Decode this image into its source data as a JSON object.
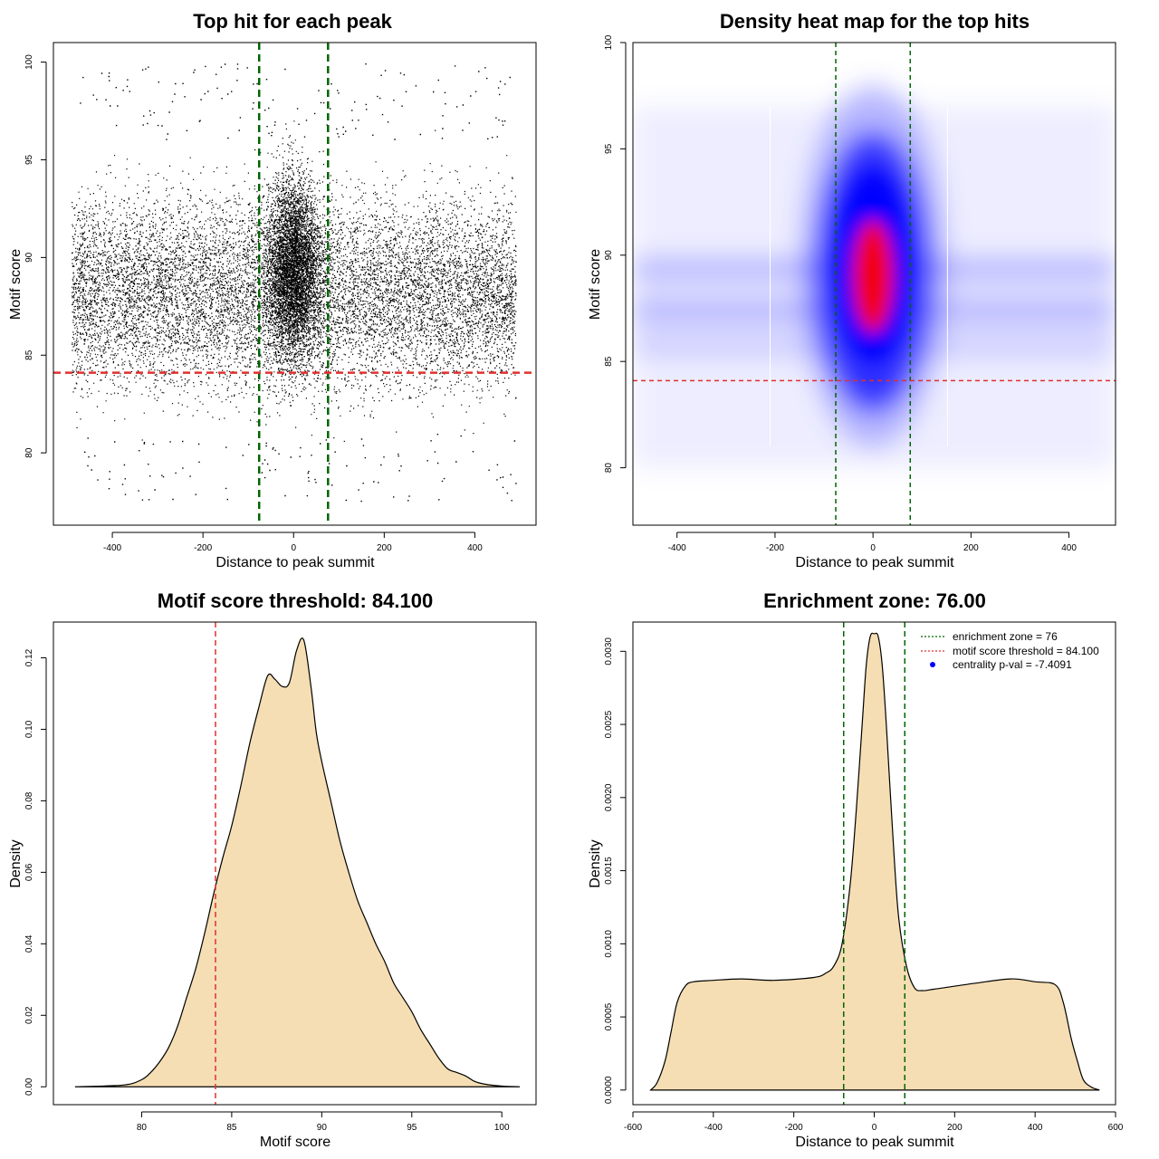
{
  "chart_data": [
    {
      "id": "scatter",
      "type": "scatter",
      "title": "Top hit for each peak",
      "xlabel": "Distance to peak summit",
      "ylabel": "Motif score",
      "xlim": [
        -530,
        535
      ],
      "ylim": [
        76.3,
        101
      ],
      "xticks": [
        -400,
        -200,
        0,
        200,
        400
      ],
      "yticks": [
        80,
        85,
        90,
        95,
        100
      ],
      "x_range": [
        -490,
        490
      ],
      "y_range": [
        77.5,
        100
      ],
      "point_density_note": "dense cloud of top-hit points; highest concentration between x -76 and 76 and scores 84-95",
      "vlines": [
        {
          "x": -76,
          "color": "#006400"
        },
        {
          "x": 76,
          "color": "#006400"
        }
      ],
      "hlines": [
        {
          "y": 84.1,
          "color": "#e0302f"
        }
      ]
    },
    {
      "id": "heatmap",
      "type": "heatmap",
      "title": "Density heat map for the top hits",
      "xlabel": "Distance to peak summit",
      "ylabel": "Motif score",
      "xlim": [
        -490,
        495
      ],
      "ylim": [
        77.3,
        100
      ],
      "xticks": [
        -400,
        -200,
        0,
        200,
        400
      ],
      "yticks": [
        80,
        85,
        90,
        95,
        100
      ],
      "colors": {
        "low": "#ffffff",
        "mid": "#0000ff",
        "high": "#ff0000"
      },
      "hotspot": {
        "x": 0,
        "y": 89
      },
      "vlines": [
        {
          "x": -76,
          "color": "#006400"
        },
        {
          "x": 76,
          "color": "#006400"
        }
      ],
      "hlines": [
        {
          "y": 84.1,
          "color": "#e0302f"
        }
      ]
    },
    {
      "id": "score_density",
      "type": "area",
      "title": "Motif score threshold: 84.100",
      "xlabel": "Motif score",
      "ylabel": "Density",
      "xlim": [
        75.1,
        101.9
      ],
      "ylim": [
        -0.005,
        0.13
      ],
      "xticks": [
        80,
        85,
        90,
        95,
        100
      ],
      "yticks": [
        0.0,
        0.02,
        0.04,
        0.06,
        0.08,
        0.1,
        0.12
      ],
      "ytick_labels": [
        "0.00",
        "0.02",
        "0.04",
        "0.06",
        "0.08",
        "0.10",
        "0.12"
      ],
      "fill": "#f5deb3",
      "x": [
        76.3,
        79,
        80,
        80.5,
        81,
        81.5,
        82,
        82.5,
        83,
        83.5,
        84,
        84.5,
        85,
        85.5,
        86,
        86.5,
        87,
        87.4,
        87.8,
        88.2,
        88.6,
        89,
        89.4,
        89.7,
        90,
        90.5,
        91,
        91.5,
        92,
        92.5,
        93,
        93.5,
        94,
        94.5,
        95,
        95.5,
        96,
        96.5,
        97,
        97.5,
        98,
        98.5,
        99,
        100,
        101
      ],
      "y": [
        0,
        0.0005,
        0.002,
        0.004,
        0.007,
        0.011,
        0.017,
        0.025,
        0.033,
        0.043,
        0.054,
        0.064,
        0.073,
        0.084,
        0.096,
        0.106,
        0.115,
        0.114,
        0.112,
        0.113,
        0.122,
        0.125,
        0.112,
        0.099,
        0.091,
        0.08,
        0.069,
        0.06,
        0.052,
        0.046,
        0.04,
        0.035,
        0.029,
        0.025,
        0.021,
        0.016,
        0.012,
        0.008,
        0.005,
        0.004,
        0.003,
        0.0015,
        0.0008,
        0.0002,
        0
      ],
      "vlines": [
        {
          "x": 84.1,
          "color": "#e0302f"
        }
      ]
    },
    {
      "id": "distance_density",
      "type": "area",
      "title": "Enrichment zone: 76.00",
      "xlabel": "Distance to peak summit",
      "ylabel": "Density",
      "xlim": [
        -600,
        600
      ],
      "ylim": [
        -0.0001,
        0.0032
      ],
      "xticks": [
        -600,
        -400,
        -200,
        0,
        200,
        400,
        600
      ],
      "yticks": [
        0,
        0.0005,
        0.001,
        0.0015,
        0.002,
        0.0025,
        0.003
      ],
      "ytick_labels": [
        "0.0000",
        "0.0005",
        "0.0010",
        "0.0015",
        "0.0020",
        "0.0025",
        "0.0030"
      ],
      "fill": "#f5deb3",
      "x": [
        -556,
        -540,
        -520,
        -505,
        -490,
        -470,
        -450,
        -400,
        -330,
        -250,
        -150,
        -120,
        -100,
        -80,
        -60,
        -45,
        -30,
        -20,
        -10,
        0,
        10,
        20,
        30,
        45,
        60,
        80,
        100,
        120,
        150,
        250,
        340,
        400,
        450,
        470,
        490,
        505,
        520,
        540,
        560
      ],
      "y": [
        0,
        5e-05,
        0.0002,
        0.0004,
        0.0006,
        0.00071,
        0.00074,
        0.00075,
        0.00076,
        0.00075,
        0.00077,
        0.0008,
        0.00085,
        0.001,
        0.0014,
        0.0019,
        0.0025,
        0.0029,
        0.0031,
        0.00312,
        0.0031,
        0.0029,
        0.0025,
        0.0018,
        0.0012,
        0.00085,
        0.0007,
        0.00068,
        0.00069,
        0.00073,
        0.00076,
        0.00074,
        0.00072,
        0.0006,
        0.00035,
        0.0002,
        7e-05,
        2e-05,
        0
      ],
      "vlines": [
        {
          "x": -76,
          "color": "#006400"
        },
        {
          "x": 76,
          "color": "#006400"
        }
      ],
      "legend": {
        "placement": "top-right",
        "entries": [
          {
            "label": "enrichment zone = 76",
            "color": "#006400",
            "style": "dotted-line"
          },
          {
            "label": "motif score threshold = 84.100",
            "color": "#e0302f",
            "style": "dotted-line"
          },
          {
            "label": "centrality p-val = -7.4091",
            "color": "#0000ff",
            "style": "dot"
          }
        ]
      }
    }
  ]
}
